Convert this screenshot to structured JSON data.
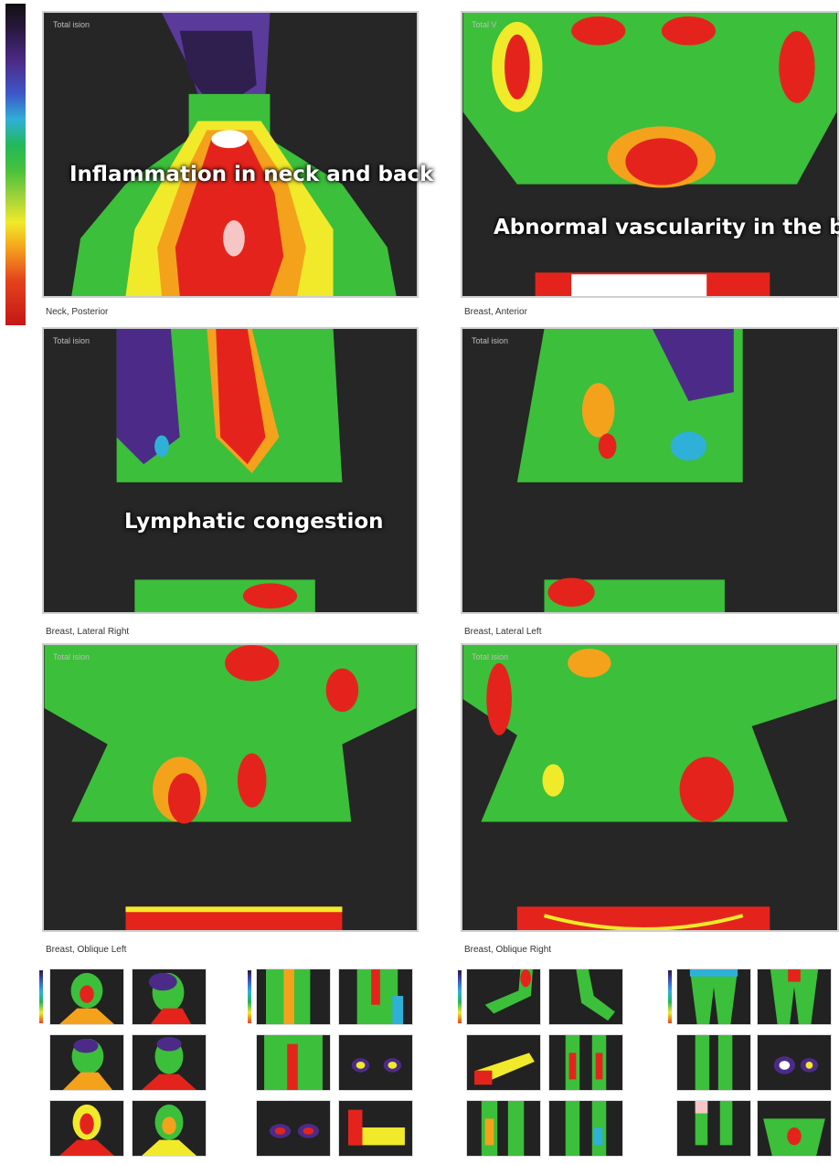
{
  "overlay_labels": {
    "neck_back": "Inflammation in neck and back",
    "breast_vascularity": "Abnormal vascularity in the brea",
    "lymphatic": "Lymphatic congestion"
  },
  "panels": [
    {
      "tag": "Total ision",
      "caption": "Neck, Posterior"
    },
    {
      "tag": "Total V",
      "caption": "Breast, Anterior"
    },
    {
      "tag": "Total ision",
      "caption": "Breast, Lateral Right"
    },
    {
      "tag": "Total ision",
      "caption": "Breast, Lateral Left"
    },
    {
      "tag": "Total ision",
      "caption": "Breast, Oblique Left"
    },
    {
      "tag": "Total ision",
      "caption": "Breast, Oblique Right"
    }
  ],
  "colors": {
    "background": "#262626",
    "hot": "#e4241c",
    "warm": "#f1ea2a",
    "mid": "#3cbf3a",
    "cool": "#2fb0d8",
    "cold": "#4c2b88"
  }
}
